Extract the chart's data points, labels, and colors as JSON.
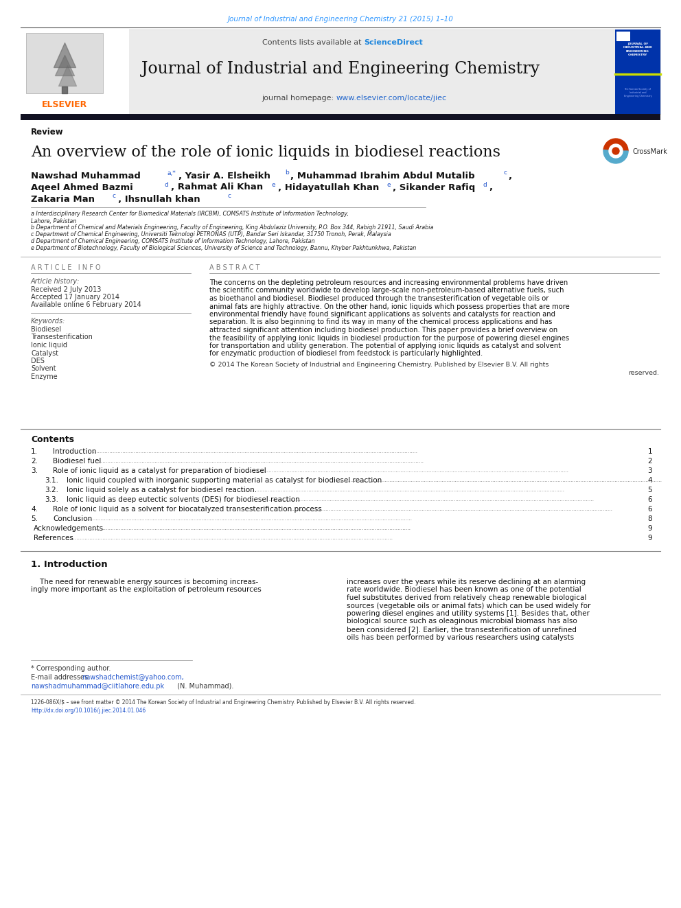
{
  "page_bg": "#ffffff",
  "top_journal_cite": "Journal of Industrial and Engineering Chemistry 21 (2015) 1–10",
  "top_cite_color": "#3399ff",
  "header_contents": "Contents lists available at ",
  "header_sciencedirect": "ScienceDirect",
  "header_sd_color": "#2288dd",
  "journal_title": "Journal of Industrial and Engineering Chemistry",
  "journal_homepage_text": "journal homepage: ",
  "journal_url": "www.elsevier.com/locate/jiec",
  "journal_url_color": "#2266cc",
  "review_label": "Review",
  "article_title": "An overview of the role of ionic liquids in biodiesel reactions",
  "affil_a": "a Interdisciplinary Research Center for Biomedical Materials (IRCBM), COMSATS Institute of Information Technology,",
  "affil_a2": "Lahore, Pakistan",
  "affil_b": "b Department of Chemical and Materials Engineering, Faculty of Engineering, King Abdulaziz University, P.O. Box 344, Rabigh 21911, Saudi Arabia",
  "affil_c": "c Department of Chemical Engineering, Universiti Teknologi PETRONAS (UTP), Bandar Seri Iskandar, 31750 Tronoh, Perak, Malaysia",
  "affil_d": "d Department of Chemical Engineering, COMSATS Institute of Information Technology, Lahore, Pakistan",
  "affil_e": "e Department of Biotechnology, Faculty of Biological Sciences, University of Science and Technology, Bannu, Khyber Pakhtunkhwa, Pakistan",
  "article_info_label": "A R T I C L E   I N F O",
  "article_history_label": "Article history:",
  "received": "Received 2 July 2013",
  "accepted": "Accepted 17 January 2014",
  "available": "Available online 6 February 2014",
  "keywords_label": "Keywords:",
  "keywords": [
    "Biodiesel",
    "Transesterification",
    "Ionic liquid",
    "Catalyst",
    "DES",
    "Solvent",
    "Enzyme"
  ],
  "abstract_label": "A B S T R A C T",
  "abstract_text": "The concerns on the depleting petroleum resources and increasing environmental problems have driven\nthe scientific community worldwide to develop large-scale non-petroleum-based alternative fuels, such\nas bioethanol and biodiesel. Biodiesel produced through the transesterification of vegetable oils or\nanimal fats are highly attractive. On the other hand, ionic liquids which possess properties that are more\nenvironmental friendly have found significant applications as solvents and catalysts for reaction and\nseparation. It is also beginning to find its way in many of the chemical process applications and has\nattracted significant attention including biodiesel production. This paper provides a brief overview on\nthe feasibility of applying ionic liquids in biodiesel production for the purpose of powering diesel engines\nfor transportation and utility generation. The potential of applying ionic liquids as catalyst and solvent\nfor enzymatic production of biodiesel from feedstock is particularly highlighted.",
  "copyright_text": "© 2014 The Korean Society of Industrial and Engineering Chemistry. Published by Elsevier B.V. All rights",
  "copyright_text2": "reserved.",
  "contents_label": "Contents",
  "toc": [
    [
      "1.",
      "Introduction",
      "1"
    ],
    [
      "2.",
      "Biodiesel fuel",
      "2"
    ],
    [
      "3.",
      "Role of ionic liquid as a catalyst for preparation of biodiesel",
      "3"
    ],
    [
      "3.1.",
      "Ionic liquid coupled with inorganic supporting material as catalyst for biodiesel reaction",
      "4"
    ],
    [
      "3.2.",
      "Ionic liquid solely as a catalyst for biodiesel reaction.",
      "5"
    ],
    [
      "3.3.",
      "Ionic liquid as deep eutectic solvents (DES) for biodiesel reaction",
      "6"
    ],
    [
      "4.",
      "Role of ionic liquid as a solvent for biocatalyzed transesterification process",
      "6"
    ],
    [
      "5.",
      "Conclusion",
      "8"
    ],
    [
      "",
      "Acknowledgements",
      "9"
    ],
    [
      "",
      "References",
      "9"
    ]
  ],
  "intro_heading": "1. Introduction",
  "intro_col1_lines": [
    "    The need for renewable energy sources is becoming increas-",
    "ingly more important as the exploitation of petroleum resources"
  ],
  "intro_col2_lines": [
    "increases over the years while its reserve declining at an alarming",
    "rate worldwide. Biodiesel has been known as one of the potential",
    "fuel substitutes derived from relatively cheap renewable biological",
    "sources (vegetable oils or animal fats) which can be used widely for",
    "powering diesel engines and utility systems [1]. Besides that, other",
    "biological source such as oleaginous microbial biomass has also",
    "been considered [2]. Earlier, the transesterification of unrefined",
    "oils has been performed by various researchers using catalysts"
  ],
  "footnote_star": "* Corresponding author.",
  "footnote_email_label": "E-mail addresses: ",
  "footnote_email1": "nawshadchemist@yahoo.com,",
  "footnote_email2": "nawshadmuhammad@ciitlahore.edu.pk",
  "footnote_email3": " (N. Muhammad).",
  "bottom_issn": "1226-086X/$ – see front matter © 2014 The Korean Society of Industrial and Engineering Chemistry. Published by Elsevier B.V. All rights reserved.",
  "bottom_doi": "http://dx.doi.org/10.1016/j.jiec.2014.01.046"
}
